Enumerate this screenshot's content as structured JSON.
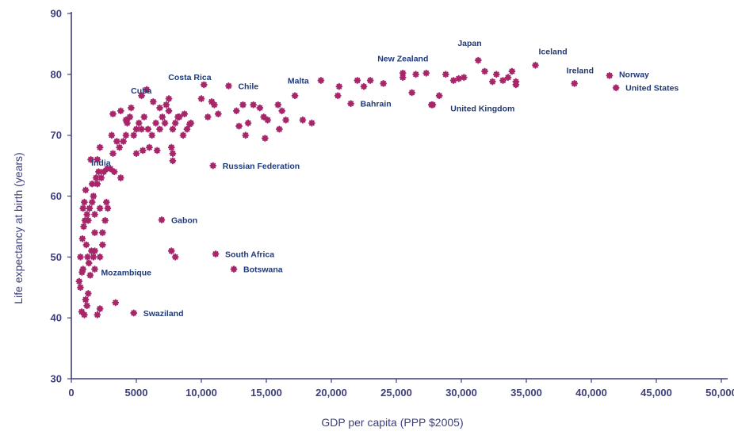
{
  "chart_data": {
    "type": "scatter",
    "xlabel": "GDP per capita (PPP $2005)",
    "ylabel": "Life expectancy at birth (years)",
    "xlim": [
      0,
      50000
    ],
    "ylim": [
      30,
      90
    ],
    "x_ticks": [
      "0",
      "5000",
      "10,000",
      "15,000",
      "20,000",
      "25,000",
      "30,000",
      "35,000",
      "40,000",
      "45,000",
      "50,000"
    ],
    "y_ticks": [
      "30",
      "40",
      "50",
      "60",
      "70",
      "80",
      "90"
    ],
    "grid": false,
    "marker_color": "#a7266a",
    "label_color": "#1f3a78",
    "axis_color": "#3d3f7c",
    "labeled_points": [
      {
        "label": "Costa Rica",
        "x": 10200,
        "y": 78.3
      },
      {
        "label": "Chile",
        "x": 12100,
        "y": 78.1
      },
      {
        "label": "Cuba",
        "x": 5800,
        "y": 77.5
      },
      {
        "label": "Malta",
        "x": 19200,
        "y": 79.0
      },
      {
        "label": "New Zealand",
        "x": 25500,
        "y": 80.2
      },
      {
        "label": "Japan",
        "x": 31300,
        "y": 82.3
      },
      {
        "label": "Iceland",
        "x": 35700,
        "y": 81.5
      },
      {
        "label": "Ireland",
        "x": 38700,
        "y": 78.5
      },
      {
        "label": "Norway",
        "x": 41400,
        "y": 79.8
      },
      {
        "label": "United States",
        "x": 41900,
        "y": 77.8
      },
      {
        "label": "Bahrain",
        "x": 21500,
        "y": 75.2
      },
      {
        "label": "United Kingdom",
        "x": 27700,
        "y": 75.0
      },
      {
        "label": "India",
        "x": 2750,
        "y": 64.5
      },
      {
        "label": "Russian Federation",
        "x": 10900,
        "y": 65.0
      },
      {
        "label": "Gabon",
        "x": 6950,
        "y": 56.1
      },
      {
        "label": "South Africa",
        "x": 11100,
        "y": 50.5
      },
      {
        "label": "Botswana",
        "x": 12500,
        "y": 48.0
      },
      {
        "label": "Mozambique",
        "x": 820,
        "y": 47.5
      },
      {
        "label": "Swaziland",
        "x": 4800,
        "y": 40.8
      }
    ],
    "points": [
      [
        600,
        46
      ],
      [
        700,
        45
      ],
      [
        800,
        41
      ],
      [
        1000,
        40.5
      ],
      [
        900,
        48
      ],
      [
        1100,
        43
      ],
      [
        1200,
        42
      ],
      [
        1300,
        44
      ],
      [
        700,
        50
      ],
      [
        850,
        53
      ],
      [
        950,
        55
      ],
      [
        1050,
        56
      ],
      [
        1150,
        52
      ],
      [
        1250,
        50
      ],
      [
        1350,
        49
      ],
      [
        1450,
        47
      ],
      [
        1550,
        51
      ],
      [
        1700,
        50
      ],
      [
        1800,
        48
      ],
      [
        2000,
        40.5
      ],
      [
        2200,
        41.5
      ],
      [
        3400,
        42.5
      ],
      [
        1800,
        51
      ],
      [
        2200,
        50
      ],
      [
        900,
        58
      ],
      [
        1000,
        59
      ],
      [
        1100,
        61
      ],
      [
        1200,
        57
      ],
      [
        1300,
        56
      ],
      [
        1400,
        58
      ],
      [
        1600,
        59
      ],
      [
        1700,
        60
      ],
      [
        1800,
        57
      ],
      [
        2000,
        62
      ],
      [
        2200,
        58
      ],
      [
        2400,
        54
      ],
      [
        2600,
        56
      ],
      [
        2700,
        59
      ],
      [
        2800,
        58
      ],
      [
        2400,
        52
      ],
      [
        1800,
        54
      ],
      [
        1900,
        63
      ],
      [
        2000,
        66
      ],
      [
        2100,
        64
      ],
      [
        2200,
        68
      ],
      [
        2300,
        63
      ],
      [
        2500,
        64
      ],
      [
        3000,
        64.5
      ],
      [
        1500,
        66
      ],
      [
        1600,
        62
      ],
      [
        3200,
        67
      ],
      [
        3500,
        69
      ],
      [
        3700,
        68
      ],
      [
        3300,
        64
      ],
      [
        3800,
        63
      ],
      [
        3100,
        70
      ],
      [
        4000,
        69
      ],
      [
        4200,
        70
      ],
      [
        4300,
        72
      ],
      [
        4500,
        73
      ],
      [
        4600,
        74.5
      ],
      [
        4800,
        70
      ],
      [
        5000,
        71
      ],
      [
        5200,
        72
      ],
      [
        5400,
        71
      ],
      [
        5600,
        73
      ],
      [
        5900,
        71
      ],
      [
        6200,
        70
      ],
      [
        6500,
        72
      ],
      [
        6800,
        71
      ],
      [
        7000,
        73
      ],
      [
        7200,
        72
      ],
      [
        7500,
        74
      ],
      [
        7800,
        71
      ],
      [
        8000,
        72
      ],
      [
        8300,
        73
      ],
      [
        8600,
        70
      ],
      [
        8900,
        71
      ],
      [
        9200,
        72
      ],
      [
        5400,
        76.5
      ],
      [
        6300,
        75.5
      ],
      [
        6800,
        74.5
      ],
      [
        7300,
        75
      ],
      [
        7500,
        76
      ],
      [
        8200,
        73
      ],
      [
        8700,
        73.5
      ],
      [
        9100,
        71.8
      ],
      [
        3200,
        73.5
      ],
      [
        3800,
        74
      ],
      [
        4200,
        72.5
      ],
      [
        5000,
        67
      ],
      [
        5500,
        67.5
      ],
      [
        6000,
        68
      ],
      [
        6600,
        67.5
      ],
      [
        7700,
        68
      ],
      [
        7800,
        67
      ],
      [
        7800,
        65.8
      ],
      [
        7700,
        51
      ],
      [
        8000,
        50
      ],
      [
        10500,
        73
      ],
      [
        11000,
        75
      ],
      [
        10800,
        75.5
      ],
      [
        11300,
        73.5
      ],
      [
        10000,
        76
      ],
      [
        12700,
        74
      ],
      [
        13200,
        75
      ],
      [
        13600,
        72
      ],
      [
        14000,
        75
      ],
      [
        14500,
        74.5
      ],
      [
        14800,
        73
      ],
      [
        15100,
        72.5
      ],
      [
        14900,
        69.5
      ],
      [
        13400,
        70
      ],
      [
        12900,
        71.5
      ],
      [
        15900,
        75
      ],
      [
        16200,
        74
      ],
      [
        16500,
        72.5
      ],
      [
        17200,
        76.5
      ],
      [
        17800,
        72.5
      ],
      [
        18500,
        72
      ],
      [
        16000,
        71
      ],
      [
        20500,
        76.5
      ],
      [
        20600,
        78
      ],
      [
        22000,
        79
      ],
      [
        22500,
        78
      ],
      [
        23000,
        79
      ],
      [
        24000,
        78.5
      ],
      [
        25500,
        79.5
      ],
      [
        26200,
        77
      ],
      [
        26500,
        80
      ],
      [
        27300,
        80.2
      ],
      [
        27800,
        75
      ],
      [
        28300,
        76.5
      ],
      [
        28800,
        80
      ],
      [
        29400,
        79
      ],
      [
        29800,
        79.3
      ],
      [
        30200,
        79.5
      ],
      [
        31800,
        80.5
      ],
      [
        32400,
        78.8
      ],
      [
        32700,
        80
      ],
      [
        33200,
        79
      ],
      [
        33600,
        79.5
      ],
      [
        33900,
        80.5
      ],
      [
        34200,
        78.8
      ],
      [
        34200,
        78.3
      ]
    ]
  }
}
